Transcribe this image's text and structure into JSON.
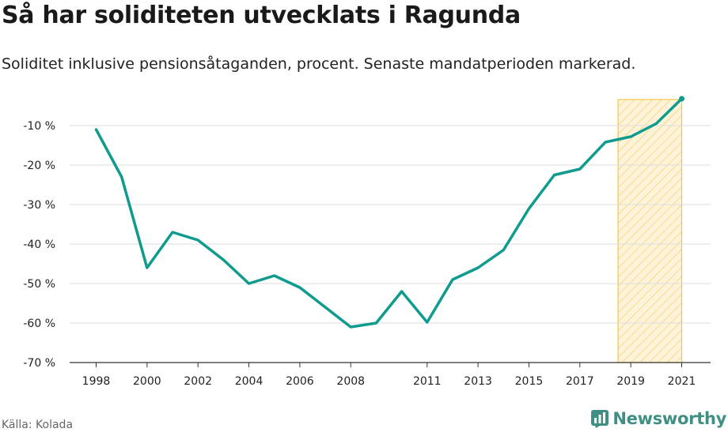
{
  "title": "Så har soliditeten utvecklats i Ragunda",
  "subtitle": "Soliditet inklusive pensionsåtaganden, procent. Senaste mandatperioden markerad.",
  "source": "Källa: Kolada",
  "brand": "Newsworthy",
  "colors": {
    "line": "#0f9b8e",
    "highlight_stroke": "#f5c542",
    "grid": "#dddddd",
    "brand": "#3f8f85"
  },
  "chart_data": {
    "type": "line",
    "title": "Så har soliditeten utvecklats i Ragunda",
    "subtitle": "Soliditet inklusive pensionsåtaganden, procent. Senaste mandatperioden markerad.",
    "x": [
      1998,
      1999,
      2000,
      2001,
      2002,
      2003,
      2004,
      2005,
      2006,
      2007,
      2008,
      2009,
      2010,
      2011,
      2012,
      2013,
      2014,
      2015,
      2016,
      2017,
      2018,
      2019,
      2020,
      2021
    ],
    "series": [
      {
        "values": [
          -11,
          -23,
          -46,
          -37,
          -39,
          -44,
          -50,
          -48,
          -51,
          -56,
          -61,
          -60,
          -52,
          -59.8,
          -49,
          -46,
          -41.5,
          -31,
          -22.5,
          -21,
          -14.2,
          -12.8,
          -9.5,
          -3.2
        ]
      }
    ],
    "xlim": [
      1998,
      2021
    ],
    "ylim": [
      -70,
      -3
    ],
    "y_ticks": [
      -10,
      -20,
      -30,
      -40,
      -50,
      -60,
      -70
    ],
    "y_tick_labels": [
      "-10 %",
      "-20 %",
      "-30 %",
      "-40 %",
      "-50 %",
      "-60 %",
      "-70 %"
    ],
    "x_ticks": [
      1998,
      2000,
      2002,
      2004,
      2006,
      2008,
      2011,
      2013,
      2015,
      2017,
      2019,
      2021
    ],
    "x_tick_labels": [
      "1998",
      "2000",
      "2002",
      "2004",
      "2006",
      "2008",
      "2011",
      "2013",
      "2015",
      "2017",
      "2019",
      "2021"
    ],
    "highlight": {
      "from": 2018.5,
      "to": 2021,
      "label": "Senaste mandatperioden"
    },
    "grid": true,
    "legend": "none"
  }
}
